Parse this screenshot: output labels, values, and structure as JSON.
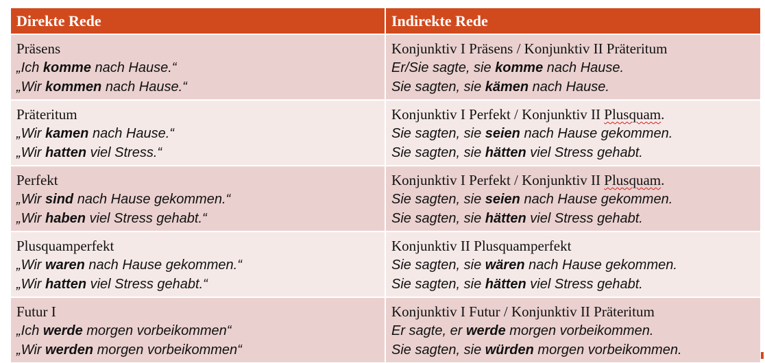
{
  "header": {
    "direct": "Direkte Rede",
    "indirect": "Indirekte Rede"
  },
  "rows": [
    {
      "direct": {
        "title": "Präsens",
        "lines": [
          {
            "pre": "„Ich ",
            "verb": "komme",
            "post": " nach Hause.“"
          },
          {
            "pre": "„Wir ",
            "verb": "kommen",
            "post": " nach Hause.“"
          }
        ]
      },
      "indirect": {
        "title_main": "Konjunktiv I Präsens / Konjunktiv II Präteritum",
        "title_flagged": "",
        "title_tail": "",
        "lines": [
          {
            "pre": "Er/Sie sagte, sie ",
            "verb": "komme",
            "post": " nach Hause."
          },
          {
            "pre": "Sie sagten, sie ",
            "verb": "kämen",
            "post": " nach Hause."
          }
        ]
      }
    },
    {
      "direct": {
        "title": "Präteritum",
        "lines": [
          {
            "pre": "„Wir ",
            "verb": "kamen",
            "post": " nach Hause.“"
          },
          {
            "pre": "„Wir ",
            "verb": "hatten",
            "post": " viel Stress.“"
          }
        ]
      },
      "indirect": {
        "title_main": "Konjunktiv I Perfekt / Konjunktiv II ",
        "title_flagged": "Plusquam",
        "title_tail": ".",
        "lines": [
          {
            "pre": "Sie sagten, sie ",
            "verb": "seien",
            "post": " nach Hause gekommen."
          },
          {
            "pre": "Sie sagten, sie ",
            "verb": "hätten",
            "post": " viel Stress gehabt."
          }
        ]
      }
    },
    {
      "direct": {
        "title": "Perfekt",
        "lines": [
          {
            "pre": "„Wir ",
            "verb": "sind",
            "post": " nach Hause gekommen.“"
          },
          {
            "pre": "„Wir ",
            "verb": "haben",
            "post": " viel Stress gehabt.“"
          }
        ]
      },
      "indirect": {
        "title_main": "Konjunktiv I Perfekt / Konjunktiv II ",
        "title_flagged": "Plusquam",
        "title_tail": ".",
        "lines": [
          {
            "pre": "Sie sagten, sie ",
            "verb": "seien",
            "post": " nach Hause gekommen."
          },
          {
            "pre": "Sie sagten, sie ",
            "verb": "hätten",
            "post": " viel Stress gehabt."
          }
        ]
      }
    },
    {
      "direct": {
        "title": "Plusquamperfekt",
        "lines": [
          {
            "pre": "„Wir ",
            "verb": "waren",
            "post": " nach Hause gekommen.“"
          },
          {
            "pre": "„Wir ",
            "verb": "hatten",
            "post": " viel Stress gehabt.“"
          }
        ]
      },
      "indirect": {
        "title_main": "Konjunktiv II Plusquamperfekt",
        "title_flagged": "",
        "title_tail": "",
        "lines": [
          {
            "pre": "Sie sagten, sie ",
            "verb": "wären",
            "post": " nach Hause gekommen."
          },
          {
            "pre": "Sie sagten, sie ",
            "verb": "hätten",
            "post": " viel Stress gehabt."
          }
        ]
      }
    },
    {
      "direct": {
        "title": "Futur I",
        "lines": [
          {
            "pre": "„Ich ",
            "verb": "werde",
            "post": " morgen vorbeikommen“"
          },
          {
            "pre": "„Wir ",
            "verb": "werden",
            "post": " morgen vorbeikommen“"
          }
        ]
      },
      "indirect": {
        "title_main": "Konjunktiv I Futur / Konjunktiv II Präteritum",
        "title_flagged": "",
        "title_tail": "",
        "lines": [
          {
            "pre": "Er sagte, er ",
            "verb": "werde",
            "post": " morgen vorbeikommen."
          },
          {
            "pre": "Sie sagten, sie ",
            "verb": "würden",
            "post": " morgen vorbeikommen."
          }
        ]
      }
    }
  ],
  "colors": {
    "header_bg": "#d14a1e",
    "row_odd": "#ead1cf",
    "row_even": "#f5e9e8",
    "spellcheck": "#d02020"
  }
}
